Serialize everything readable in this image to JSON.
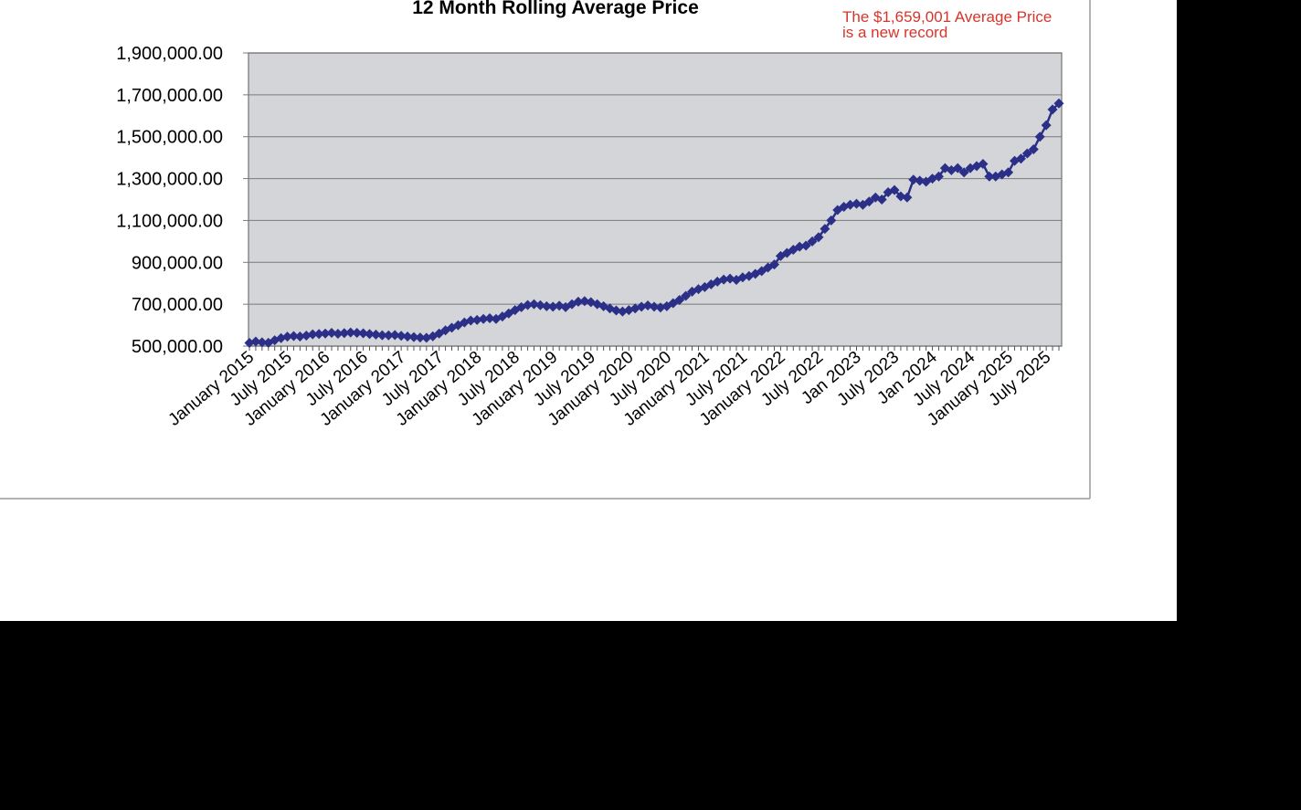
{
  "chart_data": {
    "type": "line",
    "title": "12 Month Rolling Average Price",
    "annotation": "The $1,659,001 Average Price is a new record",
    "color": "#2b2f88",
    "grid": true,
    "ylim": [
      500000,
      1900000
    ],
    "yticks": [
      {
        "value": 500000,
        "label": "500,000.00"
      },
      {
        "value": 700000,
        "label": "700,000.00"
      },
      {
        "value": 900000,
        "label": "900,000.00"
      },
      {
        "value": 1100000,
        "label": "1,100,000.00"
      },
      {
        "value": 1300000,
        "label": "1,300,000.00"
      },
      {
        "value": 1500000,
        "label": "1,500,000.00"
      },
      {
        "value": 1700000,
        "label": "1,700,000.00"
      },
      {
        "value": 1900000,
        "label": "1,900,000.00"
      }
    ],
    "categories": [
      "January 2015",
      null,
      null,
      null,
      null,
      null,
      "July 2015",
      null,
      null,
      null,
      null,
      null,
      "January 2016",
      null,
      null,
      null,
      null,
      null,
      "July 2016",
      null,
      null,
      null,
      null,
      null,
      "January 2017",
      null,
      null,
      null,
      null,
      null,
      "July 2017",
      null,
      null,
      null,
      null,
      null,
      "January 2018",
      null,
      null,
      null,
      null,
      null,
      "July 2018",
      null,
      null,
      null,
      null,
      null,
      "January 2019",
      null,
      null,
      null,
      null,
      null,
      "July 2019",
      null,
      null,
      null,
      null,
      null,
      "January 2020",
      null,
      null,
      null,
      null,
      null,
      "July 2020",
      null,
      null,
      null,
      null,
      null,
      "January 2021",
      null,
      null,
      null,
      null,
      null,
      "July 2021",
      null,
      null,
      null,
      null,
      null,
      "January 2022",
      null,
      null,
      null,
      null,
      null,
      "July 2022",
      null,
      null,
      null,
      null,
      null,
      "Jan 2023",
      null,
      null,
      null,
      null,
      null,
      "July 2023",
      null,
      null,
      null,
      null,
      null,
      "Jan 2024",
      null,
      null,
      null,
      null,
      null,
      "July 2024",
      null,
      null,
      null,
      null,
      null,
      "January 2025",
      null,
      null,
      null,
      null,
      null,
      "July 2025",
      null,
      null
    ],
    "values": [
      515000,
      522000,
      518000,
      516000,
      528000,
      538000,
      545000,
      548000,
      546000,
      550000,
      556000,
      558000,
      560000,
      563000,
      559000,
      562000,
      565000,
      563000,
      561000,
      558000,
      555000,
      552000,
      551000,
      553000,
      549000,
      546000,
      543000,
      541000,
      540000,
      547000,
      560000,
      575000,
      588000,
      600000,
      613000,
      622000,
      625000,
      630000,
      633000,
      630000,
      641000,
      656000,
      672000,
      686000,
      696000,
      700000,
      695000,
      690000,
      688000,
      693000,
      686000,
      700000,
      712000,
      715000,
      710000,
      700000,
      690000,
      680000,
      670000,
      665000,
      672000,
      680000,
      688000,
      694000,
      688000,
      684000,
      690000,
      705000,
      720000,
      740000,
      760000,
      772000,
      782000,
      795000,
      808000,
      818000,
      822000,
      816000,
      828000,
      835000,
      845000,
      858000,
      875000,
      890000,
      930000,
      945000,
      960000,
      975000,
      980000,
      1000000,
      1020000,
      1060000,
      1100000,
      1150000,
      1165000,
      1175000,
      1180000,
      1175000,
      1190000,
      1210000,
      1200000,
      1235000,
      1245000,
      1215000,
      1210000,
      1295000,
      1290000,
      1285000,
      1300000,
      1310000,
      1350000,
      1340000,
      1350000,
      1330000,
      1350000,
      1360000,
      1370000,
      1310000,
      1310000,
      1320000,
      1330000,
      1385000,
      1395000,
      1420000,
      1440000,
      1500000,
      1555000,
      1630000,
      1659001
    ]
  }
}
